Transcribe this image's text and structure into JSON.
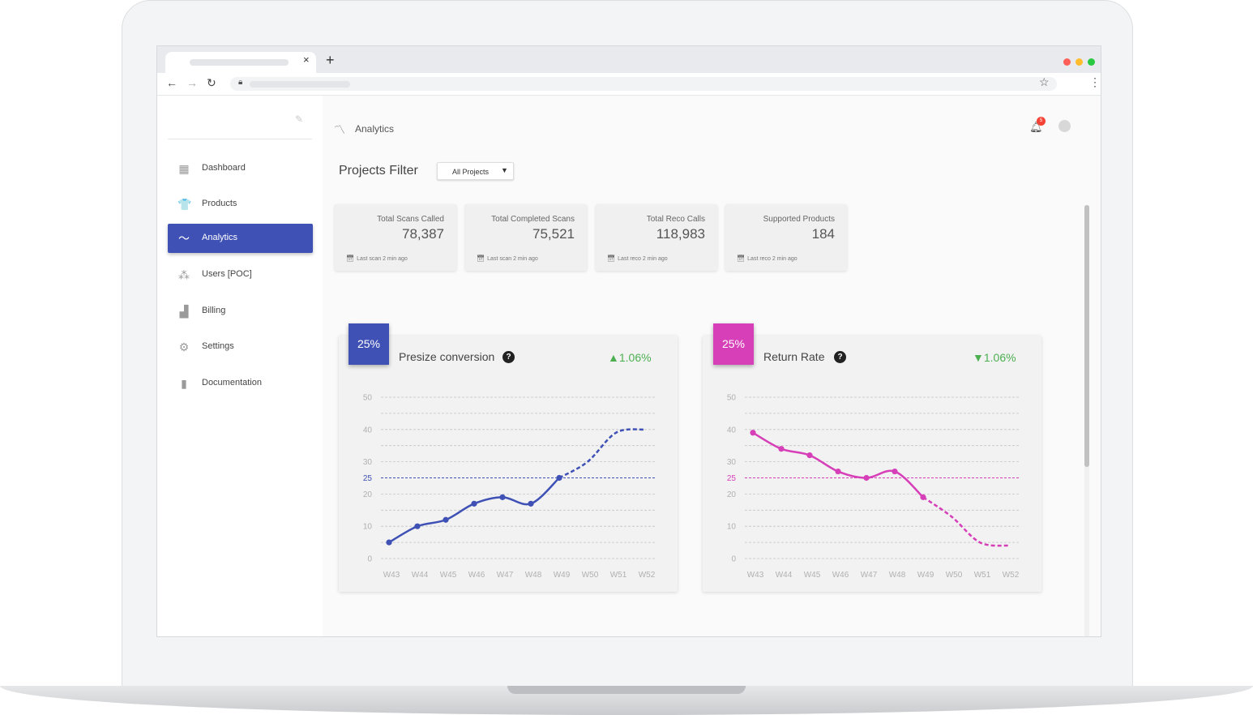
{
  "browser": {
    "tab_close": "×",
    "new_tab": "+",
    "window_dots": [
      "#ff5f57",
      "#ffbd2e",
      "#28c840"
    ]
  },
  "sidebar": {
    "items": [
      {
        "label": "Dashboard",
        "icon": "dashboard-icon",
        "glyph": "▦",
        "active": false
      },
      {
        "label": "Products",
        "icon": "tshirt-icon",
        "glyph": "👕",
        "active": false
      },
      {
        "label": "Analytics",
        "icon": "trending-icon",
        "glyph": "〜",
        "active": true
      },
      {
        "label": "Users [POC]",
        "icon": "users-icon",
        "glyph": "⁂",
        "active": false
      },
      {
        "label": "Billing",
        "icon": "billing-icon",
        "glyph": "▟",
        "active": false
      },
      {
        "label": "Settings",
        "icon": "gear-icon",
        "glyph": "⚙",
        "active": false
      },
      {
        "label": "Documentation",
        "icon": "book-icon",
        "glyph": "▮",
        "active": false
      }
    ]
  },
  "header": {
    "breadcrumb": "Analytics",
    "notification_count": "5"
  },
  "filter": {
    "label": "Projects Filter",
    "selected": "All Projects"
  },
  "stats": [
    {
      "title": "Total Scans Called",
      "value": "78,387",
      "footer": "Last scan 2 min ago"
    },
    {
      "title": "Total Completed Scans",
      "value": "75,521",
      "footer": "Last scan 2 min ago"
    },
    {
      "title": "Total Reco Calls",
      "value": "118,983",
      "footer": "Last reco 2 min ago"
    },
    {
      "title": "Supported Products",
      "value": "184",
      "footer": "Last reco 2 min ago"
    }
  ],
  "colors": {
    "primary": "#3f51b5",
    "magenta": "#d63fb8",
    "up": "#4caf50"
  },
  "chart_data": [
    {
      "type": "line",
      "title": "Presize conversion",
      "badge": "25%",
      "delta": "▲1.06%",
      "delta_direction": "up",
      "color": "#3f51b5",
      "categories": [
        "W43",
        "W44",
        "W45",
        "W46",
        "W47",
        "W48",
        "W49",
        "W50",
        "W51",
        "W52"
      ],
      "y_ticks": [
        0,
        10,
        20,
        30,
        40,
        50
      ],
      "ylim": [
        0,
        50
      ],
      "reference_line": 25,
      "series": [
        {
          "values": [
            5,
            10,
            12,
            17,
            19,
            17,
            25,
            null,
            null,
            null
          ],
          "style": "solid"
        },
        {
          "values": [
            null,
            null,
            null,
            null,
            null,
            null,
            25,
            30,
            39,
            40
          ],
          "style": "dashed"
        }
      ]
    },
    {
      "type": "line",
      "title": "Return Rate",
      "badge": "25%",
      "delta": "▼1.06%",
      "delta_direction": "down",
      "color": "#d63fb8",
      "categories": [
        "W43",
        "W44",
        "W45",
        "W46",
        "W47",
        "W48",
        "W49",
        "W50",
        "W51",
        "W52"
      ],
      "y_ticks": [
        0,
        10,
        20,
        30,
        40,
        50
      ],
      "ylim": [
        0,
        50
      ],
      "reference_line": 25,
      "series": [
        {
          "values": [
            39,
            34,
            32,
            27,
            25,
            27,
            19,
            null,
            null,
            null
          ],
          "style": "solid"
        },
        {
          "values": [
            null,
            null,
            null,
            null,
            null,
            null,
            19,
            13,
            5,
            4
          ],
          "style": "dashed"
        }
      ]
    }
  ]
}
